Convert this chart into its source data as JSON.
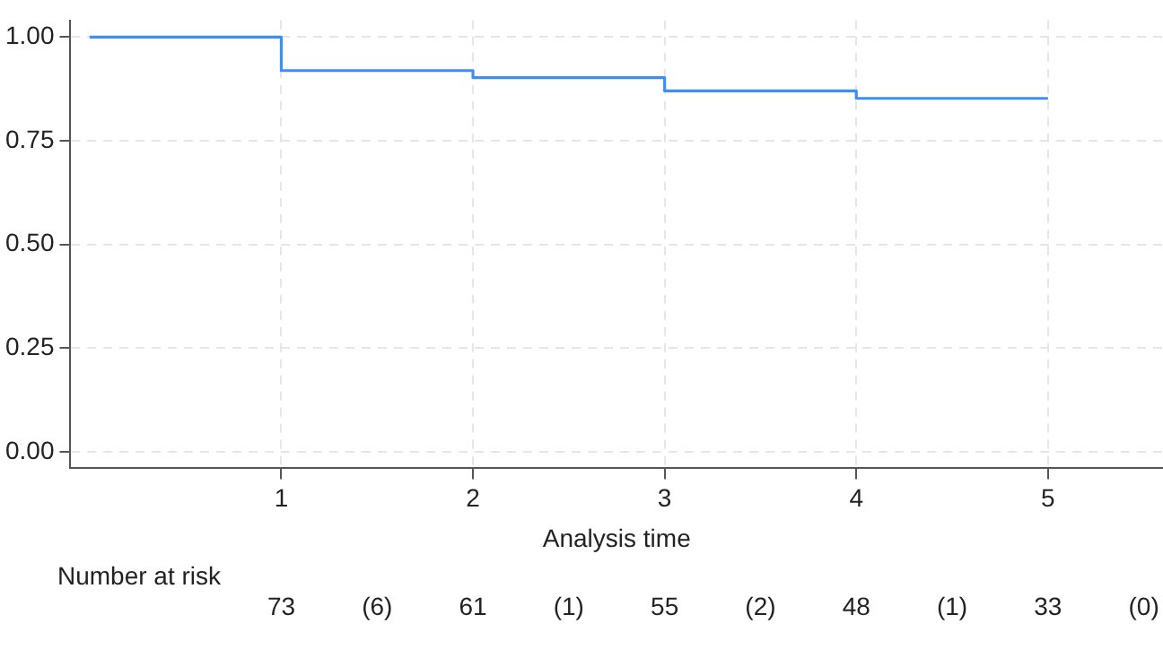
{
  "chart_data": {
    "type": "step",
    "xlabel": "Analysis time",
    "x": [
      0,
      1,
      2,
      3,
      4,
      5
    ],
    "series": [
      {
        "color": "#3e8ef7",
        "values": [
          1,
          0.919,
          0.902,
          0.87,
          0.852,
          0.852
        ]
      }
    ],
    "xlim": [
      -0.1,
      5.6
    ],
    "xticks": [
      1,
      2,
      3,
      4,
      5
    ],
    "ylim": [
      -0.04,
      1.04
    ],
    "yticks": [
      {
        "value": 0,
        "label": "0.00"
      },
      {
        "value": 0.25,
        "label": "0.25"
      },
      {
        "value": 0.5,
        "label": "0.50"
      },
      {
        "value": 0.75,
        "label": "0.75"
      },
      {
        "value": 1,
        "label": "1.00"
      }
    ],
    "grid": true,
    "legend": false,
    "marker": "none",
    "line_style": "solid",
    "annotations": [
      "Number at risk",
      "73",
      "(6)",
      "61",
      "(1)",
      "55",
      "(2)",
      "48",
      "(1)",
      "33",
      "(0)"
    ]
  }
}
